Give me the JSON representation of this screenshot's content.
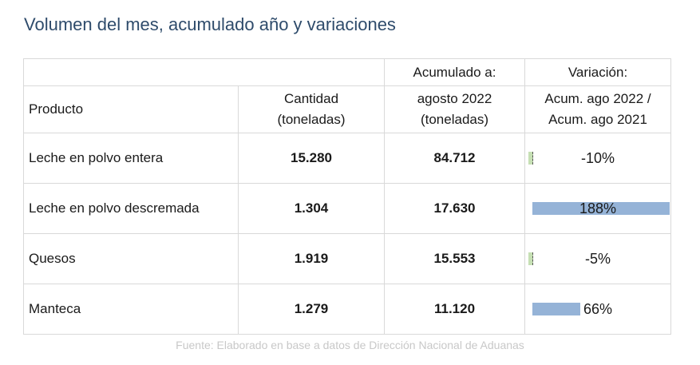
{
  "title": "Volumen del mes, acumulado año y variaciones",
  "header": {
    "producto": "Producto",
    "cantidad": "Cantidad",
    "cantidad_unit": "(toneladas)",
    "acumulado": "Acumulado a:",
    "acumulado_period": "agosto 2022",
    "acumulado_unit": "(toneladas)",
    "variacion": "Variación:",
    "variacion_line1": "Acum. ago 2022 /",
    "variacion_line2": "Acum. ago 2021"
  },
  "rows": [
    {
      "producto": "Leche en polvo entera",
      "cantidad": "15.280",
      "acumulado": "84.712",
      "variacion": "-10%",
      "variacion_value": -10
    },
    {
      "producto": "Leche en polvo descremada",
      "cantidad": "1.304",
      "acumulado": "17.630",
      "variacion": "188%",
      "variacion_value": 188
    },
    {
      "producto": "Quesos",
      "cantidad": "1.919",
      "acumulado": "15.553",
      "variacion": "-5%",
      "variacion_value": -5
    },
    {
      "producto": "Manteca",
      "cantidad": "1.279",
      "acumulado": "11.120",
      "variacion": "66%",
      "variacion_value": 66
    }
  ],
  "source": "Fuente: Elaborado en base a datos de Dirección Nacional de Aduanas",
  "colors": {
    "cantidad": "#8dc63f",
    "acumulado": "#2f557f",
    "bar_positive": "#95b3d7",
    "bar_negative": "#c6e0b4"
  }
}
